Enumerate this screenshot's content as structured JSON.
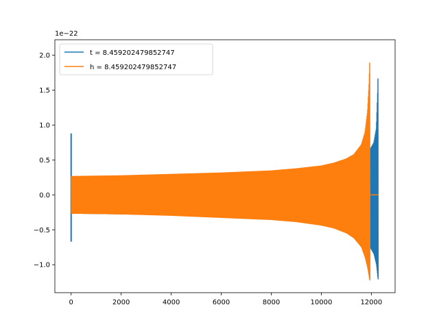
{
  "chart_data": {
    "type": "line",
    "title": "",
    "xlabel": "",
    "ylabel": "",
    "offset_text": "1e−22",
    "xlim": [
      -650,
      12950
    ],
    "ylim": [
      -1.4,
      2.22
    ],
    "xticks": [
      0,
      2000,
      4000,
      6000,
      8000,
      10000,
      12000
    ],
    "xtick_labels": [
      "0",
      "2000",
      "4000",
      "6000",
      "8000",
      "10000",
      "12000"
    ],
    "yticks": [
      -1.0,
      -0.5,
      0.0,
      0.5,
      1.0,
      1.5,
      2.0
    ],
    "ytick_labels": [
      "−1.0",
      "−0.5",
      "0.0",
      "0.5",
      "1.0",
      "1.5",
      "2.0"
    ],
    "grid": false,
    "legend_position": "upper-left",
    "series": [
      {
        "name": "t = 8.459202479852747",
        "color": "#1f77b4",
        "start_spike": {
          "x": 0,
          "min": -0.67,
          "max": 0.88
        },
        "envelope": [
          {
            "x": 0,
            "upper": 0.26,
            "lower": -0.27
          },
          {
            "x": 2000,
            "upper": 0.27,
            "lower": -0.28
          },
          {
            "x": 4000,
            "upper": 0.28,
            "lower": -0.29
          },
          {
            "x": 6000,
            "upper": 0.3,
            "lower": -0.31
          },
          {
            "x": 8000,
            "upper": 0.33,
            "lower": -0.35
          },
          {
            "x": 10000,
            "upper": 0.38,
            "lower": -0.42
          },
          {
            "x": 11000,
            "upper": 0.44,
            "lower": -0.5
          },
          {
            "x": 11500,
            "upper": 0.52,
            "lower": -0.6
          },
          {
            "x": 11900,
            "upper": 0.62,
            "lower": -0.72
          },
          {
            "x": 12100,
            "upper": 0.75,
            "lower": -0.85
          },
          {
            "x": 12200,
            "upper": 0.95,
            "lower": -1.0
          },
          {
            "x": 12260,
            "upper": 1.55,
            "lower": -1.2
          },
          {
            "x": 12280,
            "upper": 2.06,
            "lower": -1.24
          }
        ]
      },
      {
        "name": "h = 8.459202479852747",
        "color": "#ff7f0e",
        "envelope": [
          {
            "x": 0,
            "upper": 0.27,
            "lower": -0.27
          },
          {
            "x": 2000,
            "upper": 0.28,
            "lower": -0.28
          },
          {
            "x": 4000,
            "upper": 0.3,
            "lower": -0.3
          },
          {
            "x": 6000,
            "upper": 0.32,
            "lower": -0.33
          },
          {
            "x": 8000,
            "upper": 0.35,
            "lower": -0.36
          },
          {
            "x": 9000,
            "upper": 0.38,
            "lower": -0.39
          },
          {
            "x": 10000,
            "upper": 0.42,
            "lower": -0.44
          },
          {
            "x": 10500,
            "upper": 0.46,
            "lower": -0.48
          },
          {
            "x": 11000,
            "upper": 0.52,
            "lower": -0.55
          },
          {
            "x": 11300,
            "upper": 0.58,
            "lower": -0.62
          },
          {
            "x": 11600,
            "upper": 0.72,
            "lower": -0.75
          },
          {
            "x": 11750,
            "upper": 0.9,
            "lower": -0.9
          },
          {
            "x": 11850,
            "upper": 1.2,
            "lower": -1.05
          },
          {
            "x": 11910,
            "upper": 1.6,
            "lower": -1.18
          },
          {
            "x": 11950,
            "upper": 2.06,
            "lower": -1.25
          }
        ],
        "tail": [
          {
            "x": 11960,
            "y": 0.0
          },
          {
            "x": 12280,
            "y": 0.0
          }
        ]
      }
    ]
  }
}
